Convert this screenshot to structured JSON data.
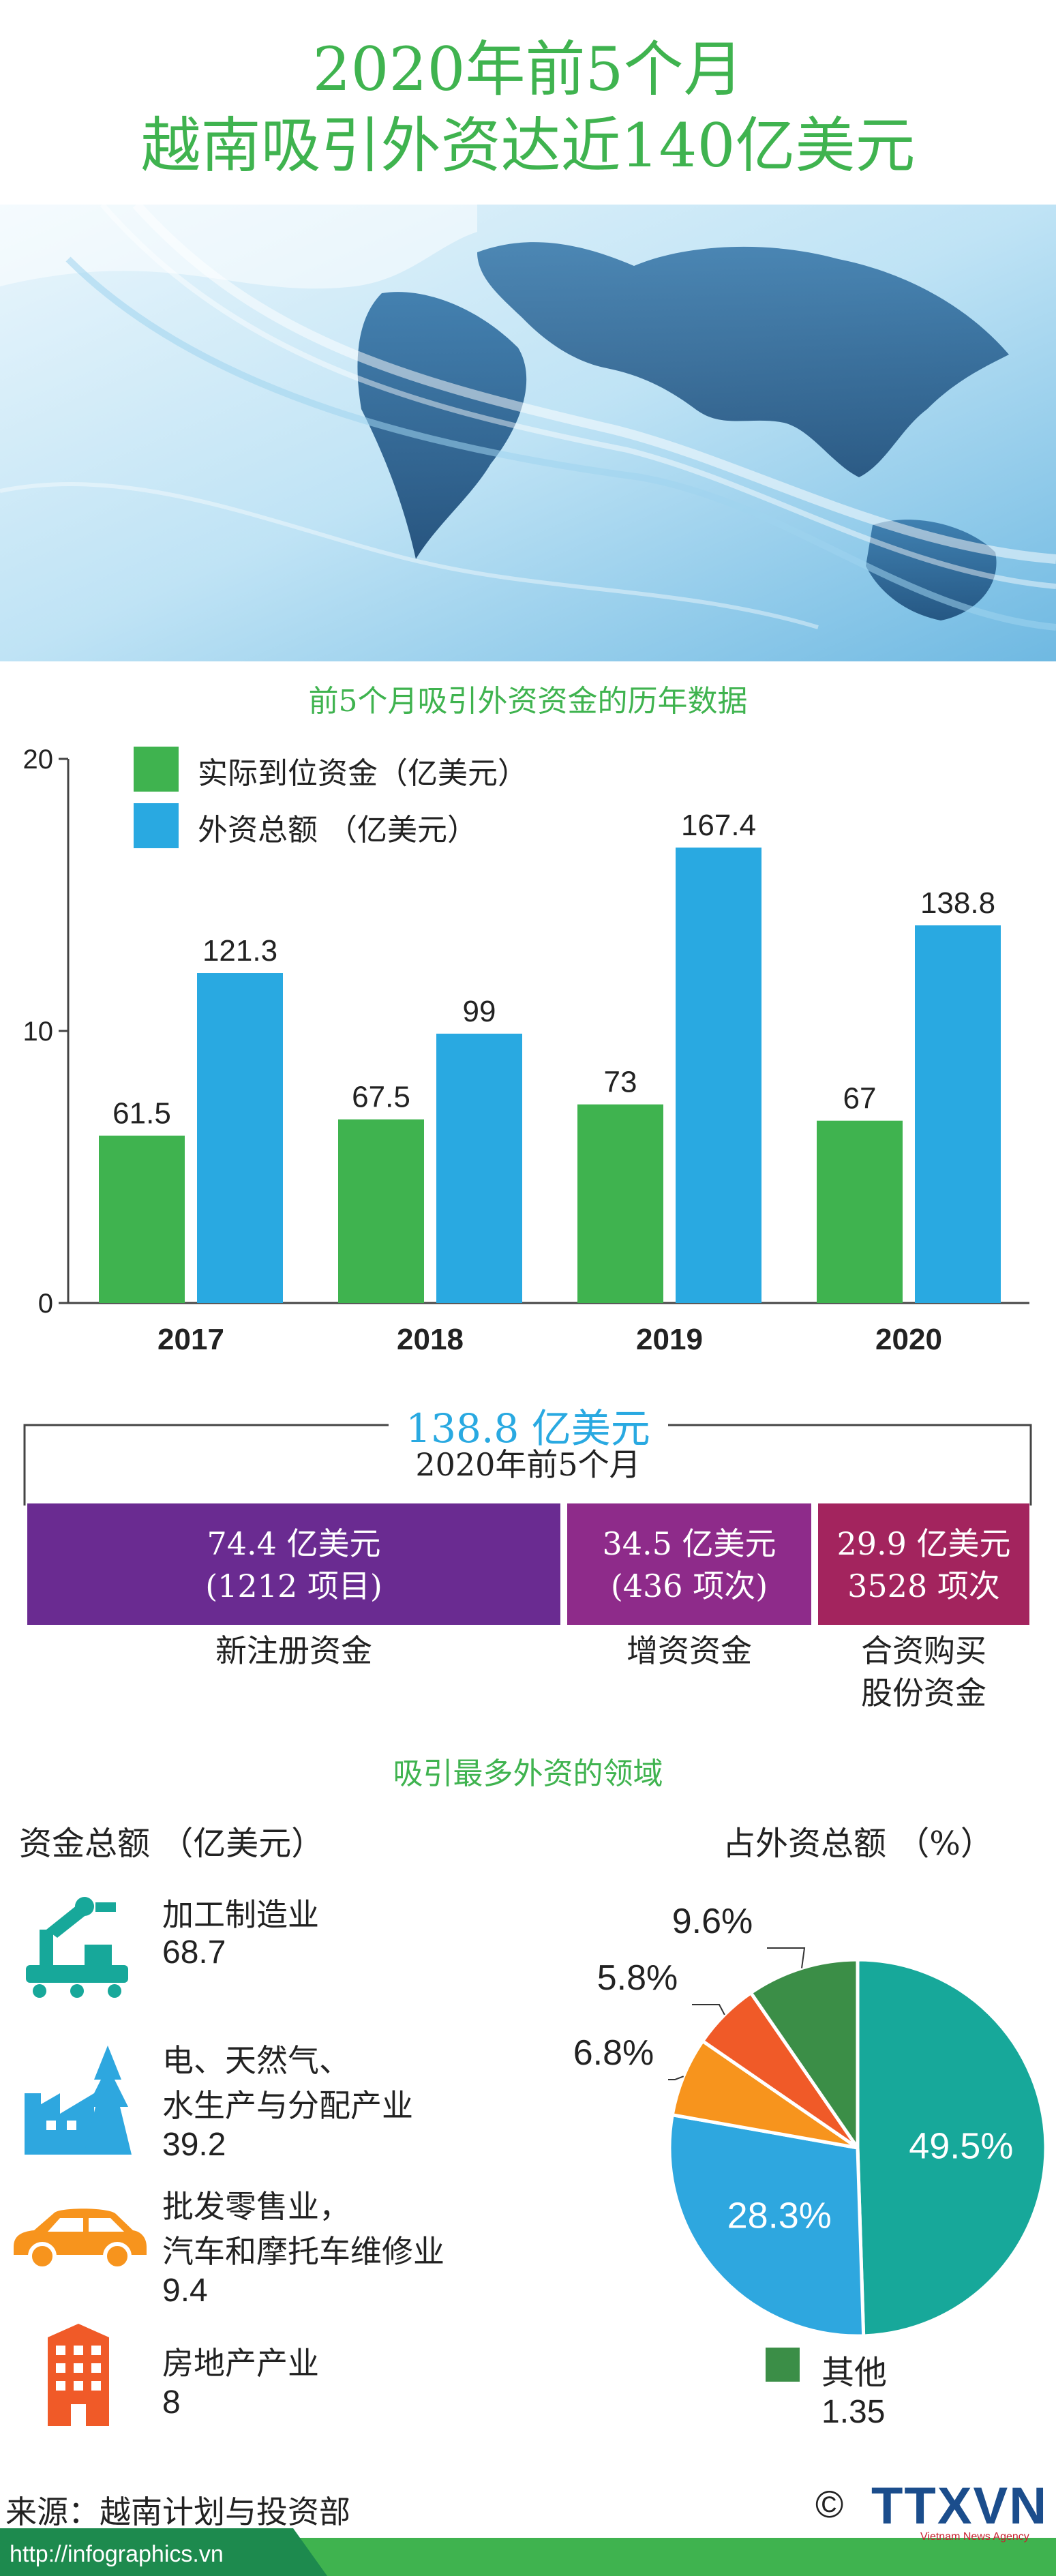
{
  "title": {
    "line1": "2020年前5个月",
    "line2": "越南吸引外资达近140亿美元"
  },
  "colors": {
    "green": "#3fb34f",
    "blue": "#29a9e1",
    "purple": "#6a2b91",
    "magenta": "#8e2b8a",
    "crimson": "#a3245e",
    "teal": "#17a89a",
    "sky": "#2ea7df",
    "orange": "#f7941d",
    "red": "#f05a28",
    "darkgreen": "#3b8e47"
  },
  "chart_data": {
    "type": "bar",
    "title": "前5个月吸引外资资金的历年数据",
    "categories": [
      "2017",
      "2018",
      "2019",
      "2020"
    ],
    "y_ticks": [
      "0",
      "10",
      "20"
    ],
    "ylim": [
      0,
      20
    ],
    "series": [
      {
        "name": "实际到位资金（亿美元）",
        "values": [
          61.5,
          67.5,
          73,
          67
        ],
        "labels": [
          "61.5",
          "67.5",
          "73",
          "67"
        ]
      },
      {
        "name": "外资总额 （亿美元）",
        "values": [
          121.3,
          99,
          167.4,
          138.8
        ],
        "labels": [
          "121.3",
          "99",
          "167.4",
          "138.8"
        ]
      }
    ]
  },
  "summary": {
    "total": "138.8 亿美元",
    "period": "2020年前5个月",
    "boxes": [
      {
        "line1": "74.4 亿美元",
        "line2": "(1212 项目)",
        "caption1": "新注册资金",
        "caption2": ""
      },
      {
        "line1": "34.5 亿美元",
        "line2": "(436 项次)",
        "caption1": "增资资金",
        "caption2": ""
      },
      {
        "line1": "29.9 亿美元",
        "line2": "3528 项次",
        "caption1": "合资购买",
        "caption2": "股份资金"
      }
    ]
  },
  "sectors": {
    "heading": "吸引最多外资的领域",
    "left_heading": "资金总额 （亿美元）",
    "right_heading": "占外资总额 （%）",
    "items": [
      {
        "icon": "factory-robot-icon",
        "line1": "加工制造业",
        "line2": "",
        "value": "68.7"
      },
      {
        "icon": "power-plant-icon",
        "line1": "电、天然气、",
        "line2": "水生产与分配产业",
        "value": "39.2"
      },
      {
        "icon": "car-icon",
        "line1": "批发零售业，",
        "line2": "汽车和摩托车维修业",
        "value": "9.4"
      },
      {
        "icon": "building-icon",
        "line1": "房地产产业",
        "line2": "",
        "value": "8"
      }
    ],
    "other": {
      "label": "其他",
      "value": "1.35"
    }
  },
  "pie": {
    "type": "pie",
    "values": [
      49.5,
      28.3,
      6.8,
      5.8,
      9.6
    ],
    "labels": [
      "49.5%",
      "28.3%",
      "6.8%",
      "5.8%",
      "9.6%"
    ]
  },
  "footer": {
    "source": "来源：越南计划与投资部",
    "url": "http://infographics.vn",
    "logo": "TTXVN",
    "logo_sub": "Vietnam News Agency",
    "copyright": "©"
  }
}
